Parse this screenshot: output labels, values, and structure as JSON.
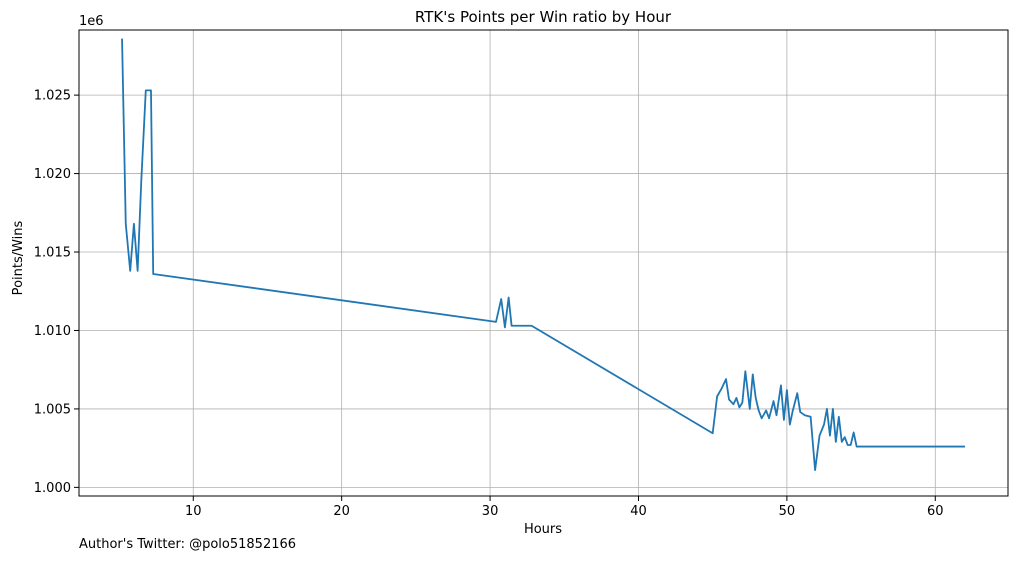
{
  "chart_data": {
    "type": "line",
    "title": "RTK's Points per Win ratio by Hour",
    "xlabel": "Hours",
    "ylabel": "Points/Wins",
    "y_offset_label": "1e6",
    "xlim": [
      2.3,
      64.9
    ],
    "ylim": [
      0.99945,
      1.02915
    ],
    "x_ticks": [
      10,
      20,
      30,
      40,
      50,
      60
    ],
    "x_tick_labels": [
      "10",
      "20",
      "30",
      "40",
      "50",
      "60"
    ],
    "y_ticks": [
      1.0,
      1.005,
      1.01,
      1.015,
      1.02,
      1.025
    ],
    "y_tick_labels": [
      "1.000",
      "1.005",
      "1.010",
      "1.015",
      "1.020",
      "1.025"
    ],
    "grid": true,
    "series": [
      {
        "color": "#1f77b4",
        "x": [
          5.2,
          5.45,
          5.75,
          6.0,
          6.25,
          6.5,
          6.8,
          7.15,
          7.3,
          30.4,
          30.75,
          31.0,
          31.25,
          31.45,
          32.8,
          45.0,
          45.3,
          45.6,
          45.9,
          46.1,
          46.4,
          46.6,
          46.8,
          47.0,
          47.2,
          47.5,
          47.7,
          47.9,
          48.1,
          48.3,
          48.6,
          48.8,
          49.1,
          49.3,
          49.6,
          49.8,
          50.0,
          50.2,
          50.4,
          50.7,
          50.9,
          51.2,
          51.6,
          51.9,
          52.2,
          52.5,
          52.7,
          52.9,
          53.1,
          53.3,
          53.5,
          53.7,
          53.9,
          54.1,
          54.3,
          54.5,
          54.7,
          55.0,
          55.2,
          55.4,
          62.0
        ],
        "values": [
          1.0286,
          1.0168,
          1.0138,
          1.0168,
          1.0138,
          1.0196,
          1.0253,
          1.0253,
          1.0136,
          1.01055,
          1.012,
          1.0102,
          1.0121,
          1.0103,
          1.0103,
          1.00345,
          1.0058,
          1.0063,
          1.0069,
          1.0056,
          1.0053,
          1.0057,
          1.0051,
          1.0054,
          1.0074,
          1.005,
          1.0072,
          1.0057,
          1.0049,
          1.0044,
          1.0049,
          1.0044,
          1.0055,
          1.0046,
          1.0065,
          1.0043,
          1.0062,
          1.004,
          1.0049,
          1.006,
          1.0048,
          1.0046,
          1.0045,
          1.0011,
          1.0033,
          1.004,
          1.005,
          1.0033,
          1.005,
          1.0029,
          1.0045,
          1.0029,
          1.0032,
          1.0027,
          1.0027,
          1.0035,
          1.0026,
          1.0026,
          1.0026,
          1.0026,
          1.0026
        ]
      }
    ]
  },
  "footer": {
    "author_note": "Author's Twitter: @polo51852166"
  }
}
